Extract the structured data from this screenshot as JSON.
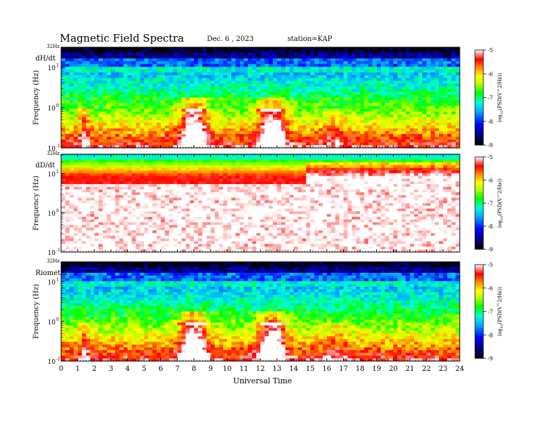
{
  "header": {
    "title": "Magnetic  Field  Spectra",
    "date": "Dec. 6  , 2023",
    "station": "station=KAP"
  },
  "chart_data": {
    "type": "heatmap",
    "xlabel": "Universal  Time",
    "xlim": [
      0,
      24
    ],
    "x_ticks": [
      "0",
      "1",
      "2",
      "3",
      "4",
      "5",
      "6",
      "7",
      "8",
      "9",
      "10",
      "11",
      "12",
      "13",
      "14",
      "15",
      "16",
      "17",
      "18",
      "19",
      "20",
      "21",
      "22",
      "23",
      "24"
    ],
    "ylabel": "Frequency  (Hz)",
    "ylim_log10": [
      -1,
      1.5
    ],
    "y_top_label": "32Hz",
    "y_ticks": [
      "10",
      "10",
      "10"
    ],
    "y_tick_exponents": [
      "1",
      "0",
      "-1"
    ],
    "colorbar": {
      "label": "log (PSD(V^2/Hz))",
      "label_sub": "10",
      "range": [
        -9,
        -5
      ],
      "ticks": [
        "-5",
        "-6",
        "-7",
        "-8",
        "-9"
      ]
    },
    "panels": [
      {
        "name": "dH/dt",
        "pattern": "a"
      },
      {
        "name": "dD/dt",
        "pattern": "b"
      },
      {
        "name": "Riometer",
        "pattern": "a"
      }
    ]
  }
}
